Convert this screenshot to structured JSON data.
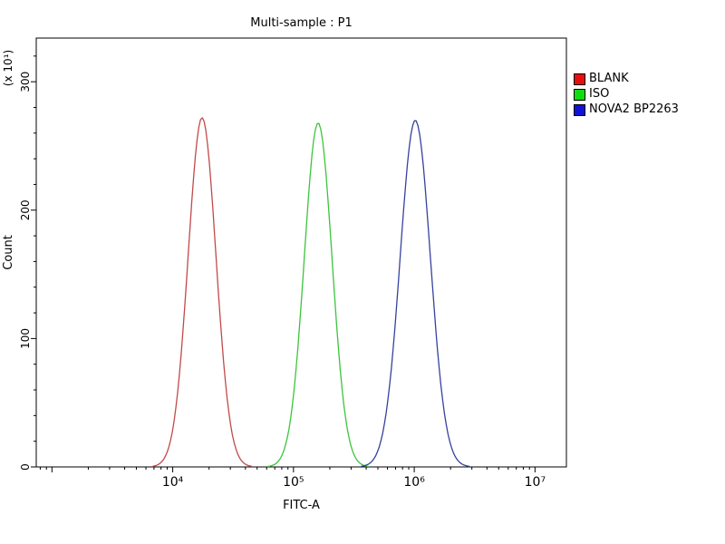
{
  "chart_data": {
    "type": "area",
    "title": "Multi-sample : P1",
    "xlabel": "FITC-A",
    "ylabel": "Count",
    "y_axis_unit": "(x 10¹)",
    "x_scale": "log10",
    "xlog_range": [
      2.87,
      7.26
    ],
    "ylim": [
      0,
      334
    ],
    "y_major_ticks": [
      0,
      100,
      200,
      300
    ],
    "y_minor_step": 20,
    "x_tick_labels": [
      {
        "log": 4,
        "label": "10⁴"
      },
      {
        "log": 5,
        "label": "10⁵"
      },
      {
        "log": 6,
        "label": "10⁶"
      },
      {
        "log": 7,
        "label": "10⁷"
      }
    ],
    "grid": false,
    "legend_position": "right",
    "series": [
      {
        "name": "BLANK",
        "swatch_color": "#e60f0f",
        "line_color": "#c04a4a",
        "peak_x": 17500,
        "peak_count": 272,
        "sigma_decades": 0.115
      },
      {
        "name": "ISO",
        "swatch_color": "#0fdd0f",
        "line_color": "#3cc43c",
        "peak_x": 160000,
        "peak_count": 268,
        "sigma_decades": 0.115
      },
      {
        "name": "NOVA2 BP2263",
        "swatch_color": "#1212d6",
        "line_color": "#35429e",
        "peak_x": 1020000,
        "peak_count": 270,
        "sigma_decades": 0.125
      }
    ]
  }
}
